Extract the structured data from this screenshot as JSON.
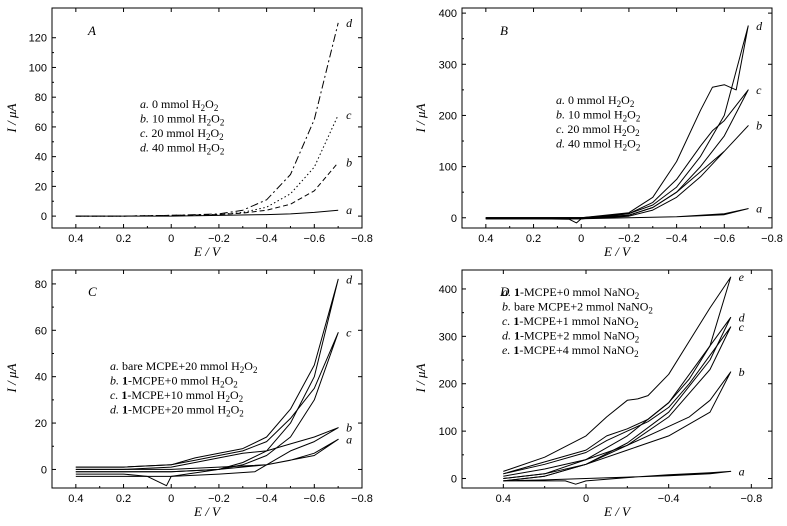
{
  "chart_data": [
    {
      "type": "line",
      "panel": "A",
      "xlabel": "E / V",
      "ylabel": "I / μA",
      "xlim": [
        0.5,
        -0.8
      ],
      "ylim": [
        -8,
        140
      ],
      "xticks": [
        0.4,
        0.2,
        0,
        -0.2,
        -0.4,
        -0.6,
        -0.8
      ],
      "xtick_labels": [
        "0.4",
        "0.2",
        "0",
        "−0.2",
        "−0.4",
        "−0.6",
        "−0.8"
      ],
      "yticks": [
        0,
        20,
        40,
        60,
        80,
        100,
        120
      ],
      "ytick_labels": [
        "0",
        "20",
        "40",
        "60",
        "80",
        "100",
        "120"
      ],
      "legend": [
        {
          "tag": "a.",
          "text": "0 mmol H₂O₂"
        },
        {
          "tag": "b.",
          "text": "10 mmol H₂O₂"
        },
        {
          "tag": "c.",
          "text": "20 mmol H₂O₂"
        },
        {
          "tag": "d.",
          "text": "40 mmol H₂O₂"
        }
      ],
      "series": [
        {
          "name": "a",
          "style": "solid",
          "x": [
            0.4,
            0.2,
            0.0,
            -0.2,
            -0.4,
            -0.5,
            -0.6,
            -0.7
          ],
          "y": [
            0,
            0,
            0,
            0.5,
            1,
            1.5,
            2.5,
            4
          ]
        },
        {
          "name": "b",
          "style": "dashed-short",
          "x": [
            0.4,
            0.2,
            0.0,
            -0.2,
            -0.3,
            -0.4,
            -0.5,
            -0.6,
            -0.7
          ],
          "y": [
            0,
            0,
            0.5,
            1,
            2,
            4,
            8,
            17,
            36
          ]
        },
        {
          "name": "c",
          "style": "dotted",
          "x": [
            0.4,
            0.2,
            0.0,
            -0.2,
            -0.3,
            -0.4,
            -0.5,
            -0.6,
            -0.7
          ],
          "y": [
            0,
            0,
            0.5,
            1,
            2.5,
            6,
            15,
            33,
            68
          ]
        },
        {
          "name": "d",
          "style": "dash-dot",
          "x": [
            0.4,
            0.2,
            0.0,
            -0.2,
            -0.3,
            -0.4,
            -0.5,
            -0.6,
            -0.7
          ],
          "y": [
            0,
            0,
            0.5,
            1.5,
            4,
            11,
            28,
            65,
            130
          ]
        }
      ]
    },
    {
      "type": "line",
      "panel": "B",
      "xlabel": "E / V",
      "ylabel": "I / μA",
      "xlim": [
        0.5,
        -0.8
      ],
      "ylim": [
        -20,
        410
      ],
      "xticks": [
        0.4,
        0.2,
        0,
        -0.2,
        -0.4,
        -0.6,
        -0.8
      ],
      "xtick_labels": [
        "0.4",
        "0.2",
        "0",
        "−0.2",
        "−0.4",
        "−0.6",
        "−0.8"
      ],
      "yticks": [
        0,
        100,
        200,
        300,
        400
      ],
      "ytick_labels": [
        "0",
        "100",
        "200",
        "300",
        "400"
      ],
      "legend": [
        {
          "tag": "a.",
          "text": "0 mmol H₂O₂"
        },
        {
          "tag": "b.",
          "text": "10 mmol H₂O₂"
        },
        {
          "tag": "c.",
          "text": "20 mmol H₂O₂"
        },
        {
          "tag": "d.",
          "text": "40 mmol H₂O₂"
        }
      ],
      "series": [
        {
          "name": "a",
          "style": "solid",
          "x": [
            0.4,
            0.2,
            0.0,
            -0.2,
            -0.4,
            -0.6,
            -0.7,
            -0.6,
            -0.4,
            -0.2,
            0.0,
            0.02,
            0.05,
            0.2,
            0.4
          ],
          "y": [
            0,
            0,
            0,
            0,
            2,
            8,
            18,
            6,
            2,
            0,
            -2,
            -10,
            -3,
            -2,
            -2
          ]
        },
        {
          "name": "b",
          "style": "solid",
          "x": [
            0.4,
            0.2,
            0.0,
            -0.2,
            -0.3,
            -0.4,
            -0.5,
            -0.6,
            -0.7,
            -0.6,
            -0.5,
            -0.4,
            -0.3,
            -0.2,
            0.0,
            0.2,
            0.4
          ],
          "y": [
            0,
            0,
            0,
            5,
            20,
            50,
            90,
            130,
            180,
            130,
            80,
            40,
            15,
            3,
            -2,
            -2,
            -2
          ]
        },
        {
          "name": "c",
          "style": "solid",
          "x": [
            0.4,
            0.2,
            0.0,
            -0.2,
            -0.3,
            -0.4,
            -0.5,
            -0.55,
            -0.6,
            -0.7,
            -0.6,
            -0.5,
            -0.4,
            -0.3,
            -0.2,
            0.0,
            0.2,
            0.4
          ],
          "y": [
            0,
            0,
            0,
            8,
            30,
            75,
            140,
            170,
            190,
            250,
            160,
            100,
            50,
            20,
            5,
            -2,
            -2,
            -2
          ]
        },
        {
          "name": "d",
          "style": "solid",
          "x": [
            0.4,
            0.2,
            0.0,
            -0.2,
            -0.3,
            -0.4,
            -0.5,
            -0.55,
            -0.6,
            -0.65,
            -0.7,
            -0.6,
            -0.5,
            -0.4,
            -0.3,
            -0.2,
            0.0,
            0.2,
            0.4
          ],
          "y": [
            0,
            0,
            0,
            10,
            40,
            110,
            210,
            255,
            260,
            250,
            375,
            200,
            120,
            60,
            25,
            8,
            -2,
            -2,
            -2
          ]
        }
      ]
    },
    {
      "type": "line",
      "panel": "C",
      "xlabel": "E / V",
      "ylabel": "I / μA",
      "xlim": [
        0.5,
        -0.8
      ],
      "ylim": [
        -8,
        86
      ],
      "xticks": [
        0.4,
        0.2,
        0,
        -0.2,
        -0.4,
        -0.6,
        -0.8
      ],
      "xtick_labels": [
        "0.4",
        "0.2",
        "0",
        "−0.2",
        "−0.4",
        "−0.6",
        "−0.8"
      ],
      "yticks": [
        0,
        20,
        40,
        60,
        80
      ],
      "ytick_labels": [
        "0",
        "20",
        "40",
        "60",
        "80"
      ],
      "legend": [
        {
          "tag": "a.",
          "pre": "",
          "bold": "",
          "text": "bare MCPE+20 mmol H₂O₂"
        },
        {
          "tag": "b.",
          "pre": "",
          "bold": "1",
          "text": "-MCPE+0 mmol H₂O₂"
        },
        {
          "tag": "c.",
          "pre": "",
          "bold": "1",
          "text": "-MCPE+10 mmol H₂O₂"
        },
        {
          "tag": "d.",
          "pre": "",
          "bold": "1",
          "text": "-MCPE+20 mmol H₂O₂"
        }
      ],
      "series": [
        {
          "name": "a",
          "style": "solid",
          "x": [
            0.4,
            0.2,
            0.0,
            -0.2,
            -0.4,
            -0.5,
            -0.6,
            -0.7,
            -0.6,
            -0.4,
            -0.2,
            0.0,
            0.2,
            0.4
          ],
          "y": [
            0,
            0,
            0,
            1,
            2,
            4,
            7,
            13,
            6,
            2,
            0,
            -3,
            -3,
            -3
          ]
        },
        {
          "name": "b",
          "style": "solid",
          "x": [
            0.4,
            0.2,
            0.0,
            -0.1,
            -0.2,
            -0.3,
            -0.4,
            -0.5,
            -0.6,
            -0.7,
            -0.6,
            -0.5,
            -0.4,
            -0.35,
            -0.2,
            0.0,
            0.02,
            0.1,
            0.2,
            0.4
          ],
          "y": [
            0,
            0,
            1,
            3,
            5,
            7,
            8,
            11,
            14,
            18,
            12,
            8,
            2,
            -1,
            -2,
            -3,
            -7,
            -3,
            -2,
            -2
          ]
        },
        {
          "name": "c",
          "style": "solid",
          "x": [
            0.4,
            0.2,
            0.0,
            -0.1,
            -0.2,
            -0.3,
            -0.4,
            -0.5,
            -0.6,
            -0.7,
            -0.6,
            -0.5,
            -0.4,
            -0.3,
            -0.2,
            0.0,
            0.2,
            0.4
          ],
          "y": [
            1,
            1,
            2,
            4,
            6,
            8,
            12,
            22,
            35,
            59,
            30,
            14,
            6,
            2,
            0,
            -1,
            -1,
            -1
          ]
        },
        {
          "name": "d",
          "style": "solid",
          "x": [
            0.4,
            0.2,
            0.0,
            -0.1,
            -0.2,
            -0.3,
            -0.4,
            -0.5,
            -0.6,
            -0.7,
            -0.6,
            -0.5,
            -0.4,
            -0.3,
            -0.2,
            0.0,
            0.2,
            0.4
          ],
          "y": [
            1,
            1,
            2,
            5,
            7,
            9,
            14,
            26,
            45,
            82,
            40,
            20,
            8,
            3,
            0,
            -1,
            -1,
            -1
          ]
        }
      ]
    },
    {
      "type": "line",
      "panel": "D",
      "xlabel": "E / V",
      "ylabel": "I / μA",
      "xlim": [
        0.6,
        -0.9
      ],
      "ylim": [
        -20,
        440
      ],
      "xticks": [
        0.4,
        0,
        -0.4,
        -0.8
      ],
      "xtick_labels": [
        "0.4",
        "0",
        "−0.4",
        "−0.8"
      ],
      "yticks": [
        0,
        100,
        200,
        300,
        400
      ],
      "ytick_labels": [
        "0",
        "100",
        "200",
        "300",
        "400"
      ],
      "legend": [
        {
          "tag": "a.",
          "bold": "1",
          "text": "-MCPE+0 mmol NaNO₂"
        },
        {
          "tag": "b.",
          "bold": "",
          "text": "bare MCPE+2 mmol NaNO₂"
        },
        {
          "tag": "c.",
          "bold": "1",
          "text": "-MCPE+1 mmol NaNO₂"
        },
        {
          "tag": "d.",
          "bold": "1",
          "text": "-MCPE+2 mmol NaNO₂"
        },
        {
          "tag": "e.",
          "bold": "1",
          "text": "-MCPE+4 mmol NaNO₂"
        }
      ],
      "series": [
        {
          "name": "a",
          "style": "solid",
          "x": [
            0.4,
            0.2,
            0.0,
            -0.2,
            -0.4,
            -0.6,
            -0.7,
            -0.6,
            -0.4,
            -0.2,
            0.0,
            0.05,
            0.1,
            0.2,
            0.4
          ],
          "y": [
            -5,
            -3,
            0,
            3,
            6,
            10,
            15,
            12,
            8,
            2,
            -5,
            -12,
            -5,
            -5,
            -5
          ]
        },
        {
          "name": "b",
          "style": "solid",
          "x": [
            0.4,
            0.2,
            0.0,
            -0.2,
            -0.4,
            -0.5,
            -0.6,
            -0.7,
            -0.6,
            -0.4,
            -0.2,
            0.0,
            0.2,
            0.4
          ],
          "y": [
            5,
            20,
            40,
            70,
            110,
            130,
            165,
            225,
            140,
            90,
            60,
            30,
            10,
            0
          ]
        },
        {
          "name": "c",
          "style": "solid",
          "x": [
            0.4,
            0.2,
            0.0,
            -0.1,
            -0.2,
            -0.3,
            -0.4,
            -0.5,
            -0.6,
            -0.7,
            -0.6,
            -0.4,
            -0.2,
            0.0,
            0.2,
            0.4
          ],
          "y": [
            10,
            30,
            55,
            80,
            100,
            120,
            150,
            200,
            260,
            320,
            230,
            130,
            70,
            30,
            5,
            -5
          ]
        },
        {
          "name": "d",
          "style": "solid",
          "x": [
            0.4,
            0.2,
            0.0,
            -0.1,
            -0.2,
            -0.3,
            -0.4,
            -0.5,
            -0.6,
            -0.7,
            -0.6,
            -0.4,
            -0.2,
            0.0,
            0.2,
            0.4
          ],
          "y": [
            10,
            35,
            60,
            90,
            105,
            125,
            160,
            210,
            280,
            340,
            250,
            140,
            75,
            30,
            5,
            -5
          ]
        },
        {
          "name": "e",
          "style": "solid",
          "x": [
            0.4,
            0.2,
            0.0,
            -0.1,
            -0.2,
            -0.25,
            -0.3,
            -0.4,
            -0.5,
            -0.6,
            -0.7,
            -0.6,
            -0.4,
            -0.2,
            0.0,
            0.2,
            0.4
          ],
          "y": [
            15,
            45,
            90,
            130,
            165,
            168,
            175,
            220,
            290,
            360,
            425,
            280,
            160,
            90,
            40,
            10,
            0
          ]
        }
      ]
    }
  ]
}
